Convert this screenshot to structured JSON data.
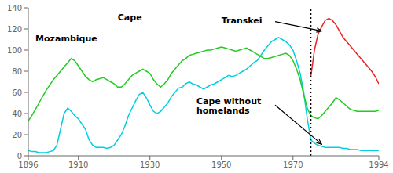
{
  "chart_data": {
    "type": "line",
    "grid": false,
    "xlim": [
      1896,
      1994
    ],
    "xticks": [
      1896,
      1910,
      1930,
      1950,
      1970,
      1994
    ],
    "ylim": [
      0,
      140
    ],
    "yticks": [
      0,
      20,
      40,
      60,
      80,
      100,
      120,
      140
    ],
    "reference_line_x": 1975,
    "x": [
      1896,
      1897,
      1898,
      1899,
      1900,
      1901,
      1902,
      1903,
      1904,
      1905,
      1906,
      1907,
      1908,
      1909,
      1910,
      1911,
      1912,
      1913,
      1914,
      1915,
      1916,
      1917,
      1918,
      1919,
      1920,
      1921,
      1922,
      1923,
      1924,
      1925,
      1926,
      1927,
      1928,
      1929,
      1930,
      1931,
      1932,
      1933,
      1934,
      1935,
      1936,
      1937,
      1938,
      1939,
      1940,
      1941,
      1942,
      1943,
      1944,
      1945,
      1946,
      1947,
      1948,
      1949,
      1950,
      1951,
      1952,
      1953,
      1954,
      1955,
      1956,
      1957,
      1958,
      1959,
      1960,
      1961,
      1962,
      1963,
      1964,
      1965,
      1966,
      1967,
      1968,
      1969,
      1970,
      1971,
      1972,
      1973,
      1974,
      1975,
      1976,
      1977,
      1978,
      1979,
      1980,
      1981,
      1982,
      1983,
      1984,
      1985,
      1986,
      1987,
      1988,
      1989,
      1990,
      1991,
      1992,
      1993,
      1994
    ],
    "series": [
      {
        "color": "#00d0e0",
        "values": [
          5,
          4,
          4,
          3,
          3,
          3,
          4,
          5,
          10,
          25,
          40,
          45,
          42,
          38,
          35,
          30,
          25,
          15,
          10,
          8,
          8,
          8,
          7,
          8,
          10,
          15,
          20,
          28,
          38,
          45,
          52,
          58,
          60,
          55,
          48,
          42,
          40,
          42,
          46,
          50,
          56,
          60,
          64,
          65,
          68,
          70,
          68,
          67,
          65,
          63,
          65,
          67,
          68,
          70,
          72,
          74,
          76,
          75,
          76,
          78,
          80,
          82,
          85,
          88,
          90,
          95,
          100,
          104,
          108,
          110,
          112,
          110,
          108,
          105,
          100,
          90,
          78,
          60,
          35,
          15,
          12,
          10,
          9,
          8,
          8,
          8,
          8,
          8,
          7,
          7,
          6,
          6,
          6,
          5,
          5,
          5,
          5,
          5,
          5
        ]
      },
      {
        "color": "#22cc22",
        "values": [
          33,
          38,
          44,
          50,
          56,
          62,
          67,
          72,
          76,
          80,
          84,
          88,
          92,
          90,
          85,
          80,
          75,
          72,
          70,
          72,
          73,
          74,
          72,
          70,
          68,
          65,
          65,
          68,
          72,
          76,
          78,
          80,
          82,
          80,
          78,
          72,
          68,
          65,
          68,
          72,
          78,
          82,
          86,
          90,
          92,
          95,
          96,
          97,
          98,
          99,
          100,
          100,
          101,
          102,
          103,
          102,
          101,
          100,
          99,
          100,
          101,
          102,
          100,
          98,
          96,
          94,
          92,
          92,
          93,
          94,
          95,
          96,
          97,
          95,
          90,
          82,
          72,
          58,
          45,
          38,
          36,
          35,
          38,
          42,
          46,
          50,
          55,
          53,
          50,
          47,
          44,
          43,
          42,
          42,
          42,
          42,
          42,
          42,
          43
        ]
      },
      {
        "color": "#ee2222",
        "values": [
          null,
          null,
          null,
          null,
          null,
          null,
          null,
          null,
          null,
          null,
          null,
          null,
          null,
          null,
          null,
          null,
          null,
          null,
          null,
          null,
          null,
          null,
          null,
          null,
          null,
          null,
          null,
          null,
          null,
          null,
          null,
          null,
          null,
          null,
          null,
          null,
          null,
          null,
          null,
          null,
          null,
          null,
          null,
          null,
          null,
          null,
          null,
          null,
          null,
          null,
          null,
          null,
          null,
          null,
          null,
          null,
          null,
          null,
          null,
          null,
          null,
          null,
          null,
          null,
          null,
          null,
          null,
          null,
          null,
          null,
          null,
          null,
          null,
          null,
          null,
          null,
          null,
          null,
          null,
          75,
          100,
          115,
          122,
          128,
          130,
          128,
          124,
          118,
          112,
          108,
          104,
          100,
          96,
          92,
          88,
          84,
          80,
          75,
          68
        ]
      }
    ],
    "annotations": [
      {
        "text": "Mozambique",
        "x": 1898,
        "y": 108
      },
      {
        "text": "Cape",
        "x": 1921,
        "y": 128
      },
      {
        "text": "Transkei",
        "x": 1950,
        "y": 125
      },
      {
        "text": "Cape without\nhomelands",
        "x": 1943,
        "y": 55
      }
    ],
    "arrows": [
      {
        "from": [
          1965,
          127
        ],
        "to": [
          1978,
          118
        ]
      },
      {
        "from": [
          1965,
          48
        ],
        "to": [
          1978,
          11
        ]
      }
    ]
  }
}
